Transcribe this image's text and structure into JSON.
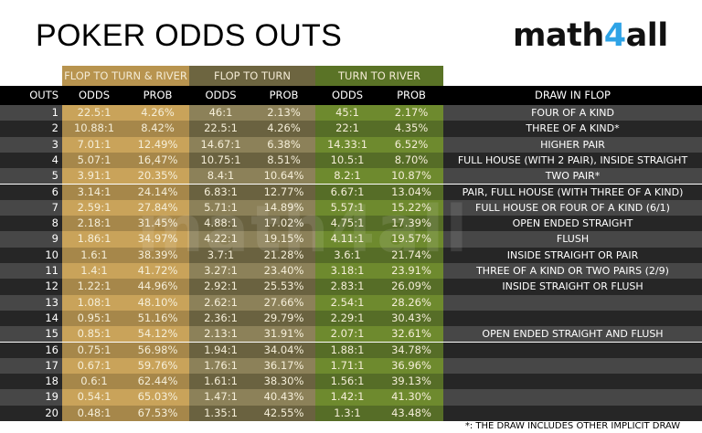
{
  "title": "POKER ODDS OUTS",
  "logo": {
    "prefix": "math",
    "accent": "4",
    "suffix": "all",
    "accent_color": "#2ea3e6"
  },
  "watermark": "math4all",
  "colors": {
    "gold_light": "#c9a35a",
    "gold_dark": "#a6874a",
    "olive_light": "#8c8159",
    "olive_dark": "#6a6240",
    "green_light": "#6e8a2e",
    "green_dark": "#566d27",
    "gray_light": "#474747",
    "gray_dark": "#262626",
    "gold_header": "#b8944f",
    "olive_header": "#6d6540",
    "green_header": "#5a7326"
  },
  "groups": [
    {
      "label": "FLOP TO TURN & RIVER"
    },
    {
      "label": "FLOP TO TURN"
    },
    {
      "label": "TURN TO RIVER"
    }
  ],
  "headers": {
    "outs": "OUTS",
    "odds1": "ODDS",
    "prob1": "PROB",
    "odds2": "ODDS",
    "prob2": "PROB",
    "odds3": "ODDS",
    "prob3": "PROB",
    "draw": "DRAW IN FLOP"
  },
  "rows": [
    {
      "outs": "1",
      "o1": "22.5:1",
      "p1": "4.26%",
      "o2": "46:1",
      "p2": "2.13%",
      "o3": "45:1",
      "p3": "2.17%",
      "draw": "FOUR OF A KIND"
    },
    {
      "outs": "2",
      "o1": "10.88:1",
      "p1": "8.42%",
      "o2": "22.5:1",
      "p2": "4.26%",
      "o3": "22:1",
      "p3": "4.35%",
      "draw": "THREE OF A KIND*"
    },
    {
      "outs": "3",
      "o1": "7.01:1",
      "p1": "12.49%",
      "o2": "14.67:1",
      "p2": "6.38%",
      "o3": "14.33:1",
      "p3": "6.52%",
      "draw": "HIGHER PAIR"
    },
    {
      "outs": "4",
      "o1": "5.07:1",
      "p1": "16,47%",
      "o2": "10.75:1",
      "p2": "8.51%",
      "o3": "10.5:1",
      "p3": "8.70%",
      "draw": "FULL HOUSE (WITH 2 PAIR), INSIDE STRAIGHT"
    },
    {
      "outs": "5",
      "o1": "3.91:1",
      "p1": "20.35%",
      "o2": "8.4:1",
      "p2": "10.64%",
      "o3": "8.2:1",
      "p3": "10.87%",
      "draw": "TWO PAIR*"
    },
    {
      "outs": "6",
      "o1": "3.14:1",
      "p1": "24.14%",
      "o2": "6.83:1",
      "p2": "12.77%",
      "o3": "6.67:1",
      "p3": "13.04%",
      "draw": "PAIR, FULL HOUSE (WITH THREE OF A KIND)"
    },
    {
      "outs": "7",
      "o1": "2.59:1",
      "p1": "27.84%",
      "o2": "5.71:1",
      "p2": "14.89%",
      "o3": "5.57:1",
      "p3": "15.22%",
      "draw": "FULL HOUSE OR FOUR OF A KIND (6/1)"
    },
    {
      "outs": "8",
      "o1": "2.18:1",
      "p1": "31.45%",
      "o2": "4.88:1",
      "p2": "17.02%",
      "o3": "4.75:1",
      "p3": "17.39%",
      "draw": "OPEN ENDED STRAIGHT"
    },
    {
      "outs": "9",
      "o1": "1.86:1",
      "p1": "34.97%",
      "o2": "4.22:1",
      "p2": "19.15%",
      "o3": "4.11:1",
      "p3": "19.57%",
      "draw": "FLUSH"
    },
    {
      "outs": "10",
      "o1": "1.6:1",
      "p1": "38.39%",
      "o2": "3.7:1",
      "p2": "21.28%",
      "o3": "3.6:1",
      "p3": "21.74%",
      "draw": "INSIDE STRAIGHT OR PAIR"
    },
    {
      "outs": "11",
      "o1": "1.4:1",
      "p1": "41.72%",
      "o2": "3.27:1",
      "p2": "23.40%",
      "o3": "3.18:1",
      "p3": "23.91%",
      "draw": "THREE OF A KIND OR TWO PAIRS (2/9)"
    },
    {
      "outs": "12",
      "o1": "1.22:1",
      "p1": "44.96%",
      "o2": "2.92:1",
      "p2": "25.53%",
      "o3": "2.83:1",
      "p3": "26.09%",
      "draw": "INSIDE STRAIGHT OR FLUSH"
    },
    {
      "outs": "13",
      "o1": "1.08:1",
      "p1": "48.10%",
      "o2": "2.62:1",
      "p2": "27.66%",
      "o3": "2.54:1",
      "p3": "28.26%",
      "draw": ""
    },
    {
      "outs": "14",
      "o1": "0.95:1",
      "p1": "51.16%",
      "o2": "2.36:1",
      "p2": "29.79%",
      "o3": "2.29:1",
      "p3": "30.43%",
      "draw": ""
    },
    {
      "outs": "15",
      "o1": "0.85:1",
      "p1": "54.12%",
      "o2": "2.13:1",
      "p2": "31.91%",
      "o3": "2.07:1",
      "p3": "32.61%",
      "draw": "OPEN ENDED STRAIGHT AND FLUSH"
    },
    {
      "outs": "16",
      "o1": "0.75:1",
      "p1": "56.98%",
      "o2": "1.94:1",
      "p2": "34.04%",
      "o3": "1.88:1",
      "p3": "34.78%",
      "draw": ""
    },
    {
      "outs": "17",
      "o1": "0.67:1",
      "p1": "59.76%",
      "o2": "1.76:1",
      "p2": "36.17%",
      "o3": "1.71:1",
      "p3": "36.96%",
      "draw": ""
    },
    {
      "outs": "18",
      "o1": "0.6:1",
      "p1": "62.44%",
      "o2": "1.61:1",
      "p2": "38.30%",
      "o3": "1.56:1",
      "p3": "39.13%",
      "draw": ""
    },
    {
      "outs": "19",
      "o1": "0.54:1",
      "p1": "65.03%",
      "o2": "1.47:1",
      "p2": "40.43%",
      "o3": "1.42:1",
      "p3": "41.30%",
      "draw": ""
    },
    {
      "outs": "20",
      "o1": "0.48:1",
      "p1": "67.53%",
      "o2": "1.35:1",
      "p2": "42.55%",
      "o3": "1.3:1",
      "p3": "43.48%",
      "draw": ""
    }
  ],
  "footnote": "*: THE DRAW INCLUDES OTHER IMPLICIT DRAW"
}
